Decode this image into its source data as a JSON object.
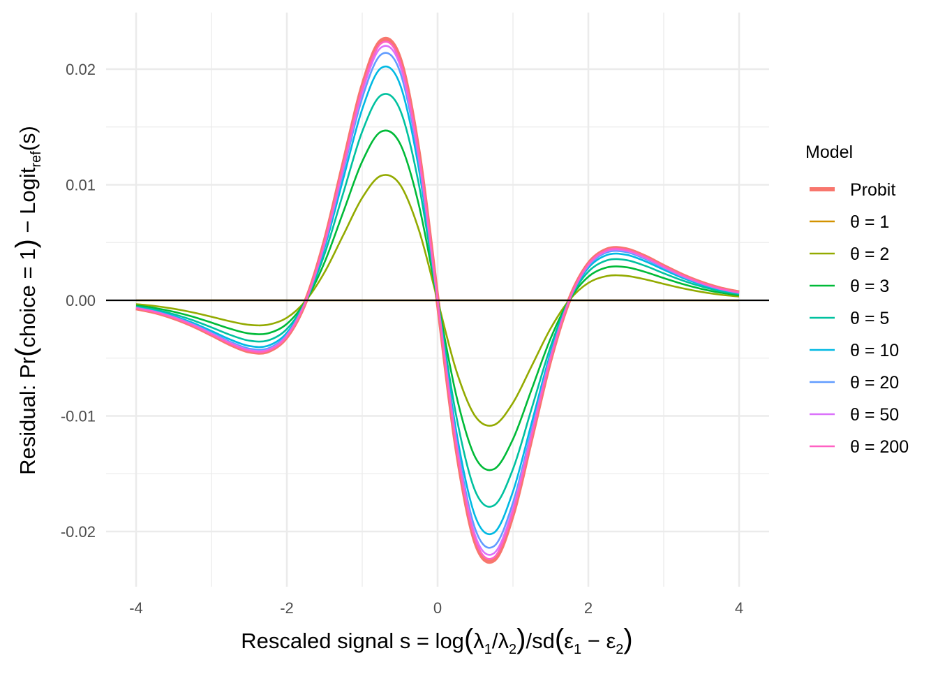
{
  "chart_data": {
    "type": "line",
    "title": "",
    "xlabel": {
      "prefix": "Rescaled signal  s = log",
      "lambda1": "λ",
      "sub1": "1",
      "slash": "/",
      "lambda2": "λ",
      "sub2": "2",
      "mid": "/sd",
      "eps1": "ε",
      "esub1": "1",
      "minus": " − ",
      "eps2": "ε",
      "esub2": "2"
    },
    "ylabel": {
      "prefix": "Residual:  Pr",
      "mid": "choice = 1",
      "minus": " − Logit",
      "sub": "ref",
      "suffix": "(s)"
    },
    "xlim": [
      -4.2,
      4.2
    ],
    "ylim": [
      -0.0248,
      0.0248
    ],
    "x_ticks": [
      -4,
      -2,
      0,
      2,
      4
    ],
    "x_tick_labels": [
      "-4",
      "-2",
      "0",
      "2",
      "4"
    ],
    "x_minor": [
      -3,
      -1,
      1,
      3
    ],
    "y_ticks": [
      -0.02,
      -0.01,
      0,
      0.01,
      0.02
    ],
    "y_tick_labels": [
      "-0.02",
      "-0.01",
      "0.00",
      "0.01",
      "0.02"
    ],
    "y_minor": [
      -0.015,
      -0.005,
      0.005,
      0.015
    ],
    "grid": true,
    "reference_line_y": 0,
    "legend": {
      "title": "Model",
      "position": "right"
    },
    "x": [
      -4,
      -3.75,
      -3.5,
      -3.25,
      -3,
      -2.75,
      -2.5,
      -2.25,
      -2,
      -1.75,
      -1.5,
      -1.25,
      -1,
      -0.75,
      -0.5,
      -0.25,
      0,
      0.25,
      0.5,
      0.75,
      1,
      1.25,
      1.5,
      1.75,
      2,
      2.25,
      2.5,
      2.75,
      3,
      3.25,
      3.5,
      3.75,
      4
    ],
    "probit_values": [
      -0.00068,
      -0.00102,
      -0.00152,
      -0.00217,
      -0.00296,
      -0.00379,
      -0.00441,
      -0.00439,
      -0.00314,
      -8e-05,
      0.00505,
      0.01179,
      0.01848,
      0.02245,
      0.0209,
      0.01275,
      0,
      -0.01275,
      -0.0209,
      -0.02245,
      -0.01848,
      -0.01179,
      -0.00505,
      8e-05,
      0.00314,
      0.00439,
      0.00441,
      0.00379,
      0.00296,
      0.00217,
      0.00152,
      0.00102,
      0.00068
    ],
    "series": [
      {
        "name": "θ = 1",
        "color": "#D39200",
        "scale_vs_probit": 0.0
      },
      {
        "name": "θ = 2",
        "color": "#93AA00",
        "scale_vs_probit": 0.48
      },
      {
        "name": "θ = 3",
        "color": "#00BA38",
        "scale_vs_probit": 0.65
      },
      {
        "name": "θ = 5",
        "color": "#00C19F",
        "scale_vs_probit": 0.79
      },
      {
        "name": "θ = 10",
        "color": "#00B9E3",
        "scale_vs_probit": 0.895
      },
      {
        "name": "θ = 20",
        "color": "#619CFF",
        "scale_vs_probit": 0.947
      },
      {
        "name": "θ = 50",
        "color": "#DB72FB",
        "scale_vs_probit": 0.974
      },
      {
        "name": "θ = 200",
        "color": "#FF61C3",
        "scale_vs_probit": 0.99
      }
    ],
    "probit": {
      "name": "Probit",
      "color": "#F8766D"
    }
  }
}
